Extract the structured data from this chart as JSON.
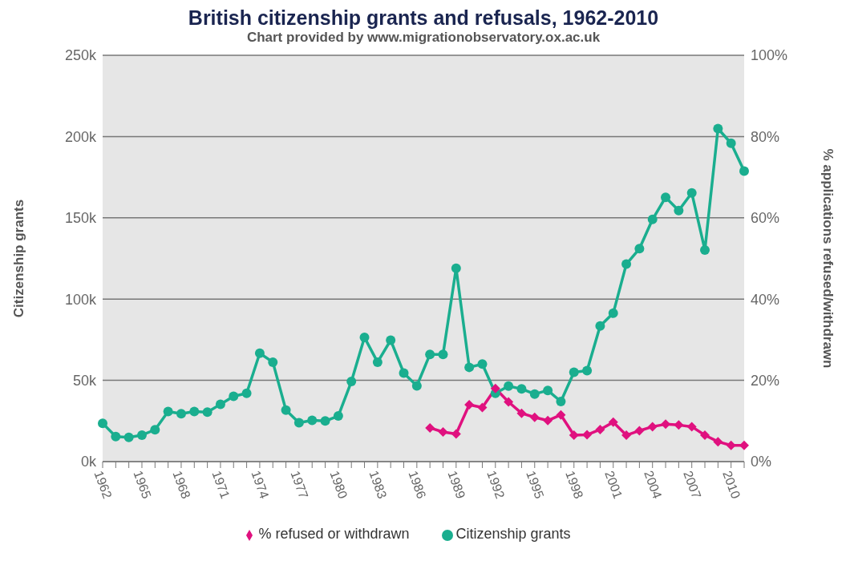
{
  "chart_data": {
    "type": "line",
    "title": "British citizenship grants and refusals, 1962-2010",
    "subtitle": "Chart provided by www.migrationobservatory.ox.ac.uk",
    "ylabel": "Citizenship grants",
    "y2label": "% applications refused/withdrawn",
    "categories": [
      "1962",
      null,
      null,
      "1965",
      null,
      null,
      "1968",
      null,
      null,
      "1971",
      null,
      null,
      "1974",
      null,
      null,
      "1977",
      null,
      null,
      "1980",
      null,
      null,
      "1983",
      null,
      null,
      "1986",
      null,
      null,
      "1989",
      null,
      null,
      "1992",
      null,
      null,
      "1995",
      null,
      null,
      "1998",
      null,
      null,
      "2001",
      null,
      null,
      "2004",
      null,
      null,
      "2007",
      null,
      null,
      "2010",
      null
    ],
    "series": [
      {
        "name": "Citizenship grants",
        "color": "#1aae8f",
        "marker": "circle",
        "values": [
          23.6,
          15.4,
          14.9,
          16.3,
          19.6,
          30.8,
          29.5,
          30.8,
          30.4,
          35.3,
          40.2,
          42,
          66.7,
          61.2,
          31.7,
          23.9,
          25.4,
          25,
          28.1,
          49.3,
          76.4,
          61.2,
          74.7,
          54.5,
          46.6,
          66,
          66,
          119,
          58,
          60,
          42,
          46.5,
          44.7,
          41.6,
          43.8,
          37,
          55,
          56,
          83.5,
          91.3,
          121.5,
          131,
          149,
          162.6,
          154.5,
          165.3,
          130.2,
          204.9,
          195.9,
          178.8
        ]
      },
      {
        "name": "% refused or withdrawn",
        "color": "#e0117f",
        "marker": "diamond",
        "axis": "y2",
        "values": [
          null,
          null,
          null,
          null,
          null,
          null,
          null,
          null,
          null,
          null,
          null,
          null,
          null,
          null,
          null,
          null,
          null,
          null,
          null,
          null,
          null,
          null,
          null,
          null,
          null,
          8.3,
          7.3,
          6.8,
          14.0,
          13.3,
          18.0,
          14.7,
          11.9,
          10.9,
          10.1,
          11.5,
          6.5,
          6.6,
          7.9,
          9.7,
          6.5,
          7.6,
          8.6,
          9.2,
          9.0,
          8.6,
          6.5,
          4.9,
          4.0,
          4.0
        ]
      }
    ],
    "ylim": [
      0,
      250
    ],
    "yticks": [
      {
        "value": 0,
        "label": "0k"
      },
      {
        "value": 50,
        "label": "50k"
      },
      {
        "value": 100,
        "label": "100k"
      },
      {
        "value": 150,
        "label": "150k"
      },
      {
        "value": 200,
        "label": "200k"
      },
      {
        "value": 250,
        "label": "250k"
      }
    ],
    "y2lim": [
      0,
      100
    ],
    "y2ticks": [
      {
        "value": 0,
        "label": "0%"
      },
      {
        "value": 20,
        "label": "20%"
      },
      {
        "value": 40,
        "label": "40%"
      },
      {
        "value": 60,
        "label": "60%"
      },
      {
        "value": 80,
        "label": "80%"
      },
      {
        "value": 100,
        "label": "100%"
      }
    ],
    "grid": "y",
    "legend": "bottom",
    "line_style": "solid"
  }
}
